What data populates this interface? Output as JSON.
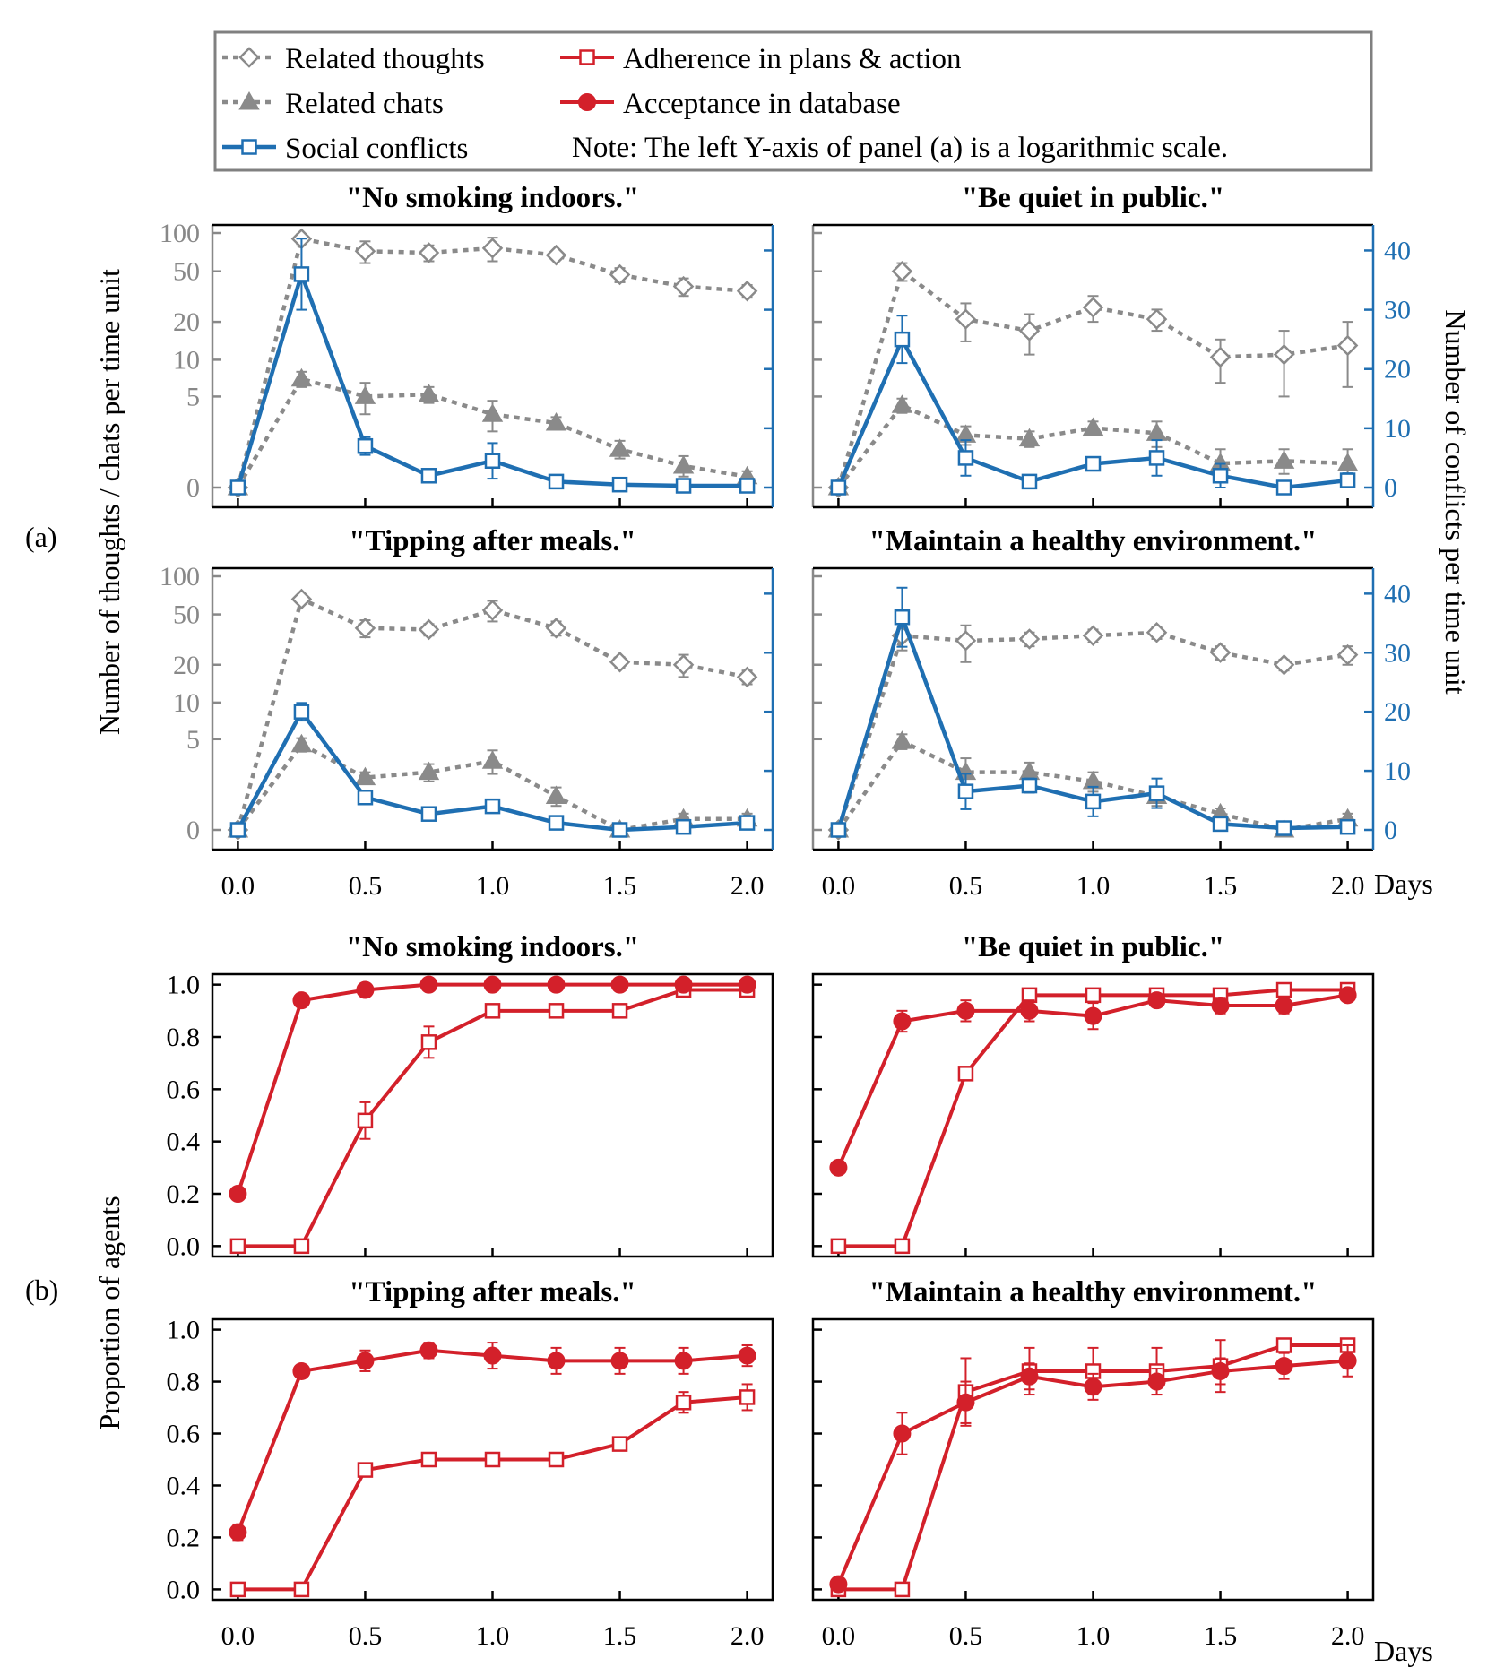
{
  "legend": {
    "items": [
      {
        "label": "Related thoughts",
        "key": "thoughts"
      },
      {
        "label": "Related chats",
        "key": "chats"
      },
      {
        "label": "Social conflicts",
        "key": "conflicts"
      },
      {
        "label": "Adherence in plans & action",
        "key": "adherence"
      },
      {
        "label": "Acceptance in database",
        "key": "acceptance"
      }
    ],
    "note": "Note: The left Y-axis of panel (a) is a logarithmic scale."
  },
  "colors": {
    "thoughts": "#8a8a8a",
    "chats": "#8a8a8a",
    "conflicts": "#1f6fb2",
    "adherence": "#d3202a",
    "acceptance": "#d3202a"
  },
  "labels": {
    "panel_a": "(a)",
    "panel_b": "(b)",
    "ylabel_a_left": "Number of thoughts / chats per time unit",
    "ylabel_a_right": "Number of conflicts per time unit",
    "ylabel_b": "Proportion of agents",
    "days": "Days"
  },
  "chart_data": [
    {
      "type": "line",
      "title": "\"No smoking indoors.\"",
      "x": [
        0.0,
        0.25,
        0.5,
        0.75,
        1.0,
        1.25,
        1.5,
        1.75,
        2.0
      ],
      "x_ticks": [
        "0.0",
        "0.5",
        "1.0",
        "1.5",
        "2.0"
      ],
      "yscale_left": "log",
      "yticks_left": [
        "0",
        "5",
        "10",
        "20",
        "50",
        "100"
      ],
      "ylim_right": [
        0,
        44
      ],
      "yticks_right": [
        "0",
        "10",
        "20",
        "30",
        "40"
      ],
      "series": [
        {
          "name": "Related thoughts",
          "axis": "left",
          "values": [
            0,
            90,
            72,
            70,
            76,
            67,
            47,
            38,
            35
          ],
          "err": [
            0,
            8,
            14,
            10,
            16,
            5,
            6,
            6,
            4
          ]
        },
        {
          "name": "Related chats",
          "axis": "left",
          "values": [
            0,
            7,
            5,
            5.2,
            3.5,
            2.9,
            1.5,
            0.8,
            0.4
          ],
          "err": [
            0,
            1,
            1.5,
            0.8,
            1.1,
            0.4,
            0.4,
            0.4,
            0.2
          ]
        },
        {
          "name": "Social conflicts",
          "axis": "right",
          "values": [
            0,
            36,
            7,
            2,
            4.5,
            1,
            0.5,
            0.3,
            0.3
          ],
          "err": [
            0,
            6,
            1.5,
            0.7,
            3,
            0.6,
            0.5,
            0.3,
            0.3
          ]
        }
      ]
    },
    {
      "type": "line",
      "title": "\"Be quiet in public.\"",
      "x": [
        0.0,
        0.25,
        0.5,
        0.75,
        1.0,
        1.25,
        1.5,
        1.75,
        2.0
      ],
      "x_ticks": [
        "0.0",
        "0.5",
        "1.0",
        "1.5",
        "2.0"
      ],
      "yscale_left": "log",
      "yticks_left": [
        "0",
        "5",
        "10",
        "20",
        "50",
        "100"
      ],
      "ylim_right": [
        0,
        44
      ],
      "yticks_right": [
        "0",
        "10",
        "20",
        "30",
        "40"
      ],
      "series": [
        {
          "name": "Related thoughts",
          "axis": "left",
          "values": [
            0,
            50,
            21,
            17,
            26,
            21,
            10.5,
            11,
            13
          ],
          "err": [
            0,
            8,
            7,
            6,
            6,
            4,
            4,
            6,
            7
          ]
        },
        {
          "name": "Related chats",
          "axis": "left",
          "values": [
            0,
            4.2,
            2.2,
            2.0,
            2.6,
            2.3,
            0.9,
            1.0,
            0.9
          ],
          "err": [
            0,
            0.6,
            0.5,
            0.4,
            0.4,
            0.7,
            0.6,
            0.5,
            0.6
          ]
        },
        {
          "name": "Social conflicts",
          "axis": "right",
          "values": [
            0,
            25,
            5,
            1,
            4,
            5,
            2,
            0,
            1.2
          ],
          "err": [
            0,
            4,
            3,
            0.5,
            1,
            3,
            2,
            0.4,
            1.2
          ]
        }
      ]
    },
    {
      "type": "line",
      "title": "\"Tipping after meals.\"",
      "x": [
        0.0,
        0.25,
        0.5,
        0.75,
        1.0,
        1.25,
        1.5,
        1.75,
        2.0
      ],
      "x_ticks": [
        "0.0",
        "0.5",
        "1.0",
        "1.5",
        "2.0"
      ],
      "yscale_left": "log",
      "yticks_left": [
        "0",
        "5",
        "10",
        "20",
        "50",
        "100"
      ],
      "ylim_right": [
        0,
        44
      ],
      "yticks_right": [
        "0",
        "10",
        "20",
        "30",
        "40"
      ],
      "series": [
        {
          "name": "Related thoughts",
          "axis": "left",
          "values": [
            0,
            66,
            39,
            38,
            54,
            39,
            21,
            20,
            16
          ],
          "err": [
            0,
            4,
            6,
            4,
            10,
            5,
            2,
            4,
            2
          ]
        },
        {
          "name": "Related chats",
          "axis": "left",
          "values": [
            0,
            4.5,
            2.2,
            2.5,
            3.2,
            1.3,
            0,
            0.4,
            0.4
          ],
          "err": [
            0,
            0.6,
            0.3,
            0.5,
            0.8,
            0.4,
            0.1,
            0.2,
            0.2
          ]
        },
        {
          "name": "Social conflicts",
          "axis": "right",
          "values": [
            0,
            20,
            5.5,
            2.7,
            4,
            1.2,
            0,
            0.5,
            1.2
          ],
          "err": [
            0,
            1.5,
            0.5,
            0.3,
            1,
            0.3,
            0.3,
            0.3,
            0.5
          ]
        }
      ]
    },
    {
      "type": "line",
      "title": "\"Maintain a healthy environment.\"",
      "x": [
        0.0,
        0.25,
        0.5,
        0.75,
        1.0,
        1.25,
        1.5,
        1.75,
        2.0
      ],
      "x_ticks": [
        "0.0",
        "0.5",
        "1.0",
        "1.5",
        "2.0"
      ],
      "yscale_left": "log",
      "yticks_left": [
        "0",
        "5",
        "10",
        "20",
        "50",
        "100"
      ],
      "ylim_right": [
        0,
        44
      ],
      "yticks_right": [
        "0",
        "10",
        "20",
        "30",
        "40"
      ],
      "series": [
        {
          "name": "Related thoughts",
          "axis": "left",
          "values": [
            0,
            34,
            31,
            32,
            34,
            36,
            25,
            20,
            24
          ],
          "err": [
            0,
            8,
            10,
            4,
            4,
            4,
            3,
            2,
            4
          ]
        },
        {
          "name": "Related chats",
          "axis": "left",
          "values": [
            0,
            4.8,
            2.5,
            2.5,
            2,
            1.3,
            0.6,
            0,
            0.4
          ],
          "err": [
            0,
            0.7,
            0.9,
            0.6,
            0.5,
            0.4,
            0.2,
            0.1,
            0.2
          ]
        },
        {
          "name": "Social conflicts",
          "axis": "right",
          "values": [
            0,
            36,
            6.5,
            7.5,
            4.8,
            6.2,
            1,
            0.3,
            0.5
          ],
          "err": [
            0,
            5,
            3,
            1.2,
            2.5,
            2.5,
            0.5,
            0.3,
            0.3
          ]
        }
      ]
    },
    {
      "type": "line",
      "title": "\"No smoking indoors.\"",
      "x": [
        0.0,
        0.25,
        0.5,
        0.75,
        1.0,
        1.25,
        1.5,
        1.75,
        2.0
      ],
      "x_ticks": [
        "0.0",
        "0.5",
        "1.0",
        "1.5",
        "2.0"
      ],
      "ylim": [
        -0.04,
        1.04
      ],
      "yticks": [
        "0.0",
        "0.2",
        "0.4",
        "0.6",
        "0.8",
        "1.0"
      ],
      "series": [
        {
          "name": "Adherence in plans & action",
          "values": [
            0,
            0,
            0.48,
            0.78,
            0.9,
            0.9,
            0.9,
            0.98,
            0.98
          ],
          "err": [
            0,
            0,
            0.07,
            0.06,
            0.01,
            0.01,
            0.01,
            0.01,
            0.01
          ]
        },
        {
          "name": "Acceptance in database",
          "values": [
            0.2,
            0.94,
            0.98,
            1.0,
            1.0,
            1.0,
            1.0,
            1.0,
            1.0
          ],
          "err": [
            0,
            0.01,
            0.01,
            0,
            0,
            0,
            0,
            0,
            0
          ]
        }
      ]
    },
    {
      "type": "line",
      "title": "\"Be quiet in public.\"",
      "x": [
        0.0,
        0.25,
        0.5,
        0.75,
        1.0,
        1.25,
        1.5,
        1.75,
        2.0
      ],
      "x_ticks": [
        "0.0",
        "0.5",
        "1.0",
        "1.5",
        "2.0"
      ],
      "ylim": [
        -0.04,
        1.04
      ],
      "yticks": [
        "0.0",
        "0.2",
        "0.4",
        "0.6",
        "0.8",
        "1.0"
      ],
      "series": [
        {
          "name": "Adherence in plans & action",
          "values": [
            0,
            0,
            0.66,
            0.96,
            0.96,
            0.96,
            0.96,
            0.98,
            0.98
          ],
          "err": [
            0,
            0,
            0.02,
            0.01,
            0.01,
            0.01,
            0.01,
            0.01,
            0.01
          ]
        },
        {
          "name": "Acceptance in database",
          "values": [
            0.3,
            0.86,
            0.9,
            0.9,
            0.88,
            0.94,
            0.92,
            0.92,
            0.96
          ],
          "err": [
            0,
            0.04,
            0.04,
            0.04,
            0.05,
            0.02,
            0.03,
            0.03,
            0.02
          ]
        }
      ]
    },
    {
      "type": "line",
      "title": "\"Tipping after meals.\"",
      "x": [
        0.0,
        0.25,
        0.5,
        0.75,
        1.0,
        1.25,
        1.5,
        1.75,
        2.0
      ],
      "x_ticks": [
        "0.0",
        "0.5",
        "1.0",
        "1.5",
        "2.0"
      ],
      "ylim": [
        -0.04,
        1.04
      ],
      "yticks": [
        "0.0",
        "0.2",
        "0.4",
        "0.6",
        "0.8",
        "1.0"
      ],
      "series": [
        {
          "name": "Adherence in plans & action",
          "values": [
            0,
            0,
            0.46,
            0.5,
            0.5,
            0.5,
            0.56,
            0.72,
            0.74
          ],
          "err": [
            0,
            0,
            0.01,
            0.01,
            0.01,
            0.01,
            0.01,
            0.04,
            0.05
          ]
        },
        {
          "name": "Acceptance in database",
          "values": [
            0.22,
            0.84,
            0.88,
            0.92,
            0.9,
            0.88,
            0.88,
            0.88,
            0.9
          ],
          "err": [
            0.03,
            0.01,
            0.04,
            0.03,
            0.05,
            0.05,
            0.05,
            0.05,
            0.04
          ]
        }
      ]
    },
    {
      "type": "line",
      "title": "\"Maintain a healthy environment.\"",
      "x": [
        0.0,
        0.25,
        0.5,
        0.75,
        1.0,
        1.25,
        1.5,
        1.75,
        2.0
      ],
      "x_ticks": [
        "0.0",
        "0.5",
        "1.0",
        "1.5",
        "2.0"
      ],
      "ylim": [
        -0.04,
        1.04
      ],
      "yticks": [
        "0.0",
        "0.2",
        "0.4",
        "0.6",
        "0.8",
        "1.0"
      ],
      "series": [
        {
          "name": "Adherence in plans & action",
          "values": [
            0,
            0,
            0.76,
            0.84,
            0.84,
            0.84,
            0.86,
            0.94,
            0.94
          ],
          "err": [
            0,
            0,
            0.13,
            0.09,
            0.09,
            0.09,
            0.1,
            0.02,
            0.02
          ]
        },
        {
          "name": "Acceptance in database",
          "values": [
            0.02,
            0.6,
            0.72,
            0.82,
            0.78,
            0.8,
            0.84,
            0.86,
            0.88
          ],
          "err": [
            0,
            0.08,
            0.08,
            0.05,
            0.05,
            0.05,
            0.05,
            0.05,
            0.06
          ]
        }
      ]
    }
  ]
}
